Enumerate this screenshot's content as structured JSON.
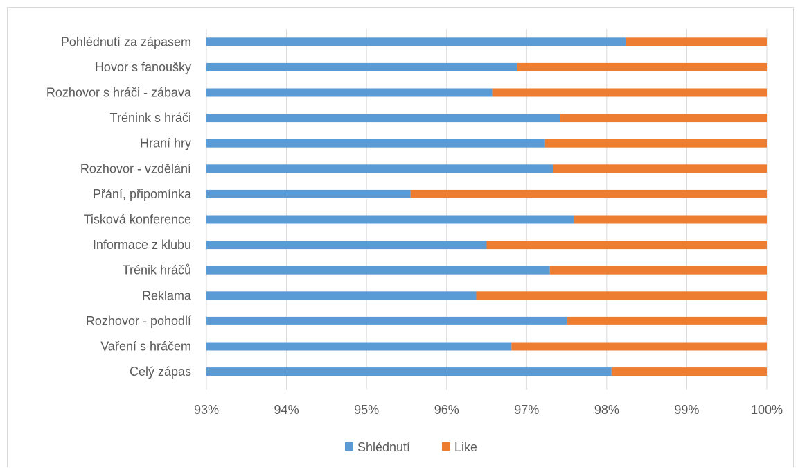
{
  "chart_data": {
    "type": "bar",
    "orientation": "horizontal",
    "stacked": "percent",
    "title": "",
    "xlabel": "",
    "ylabel": "",
    "categories": [
      "Pohlédnutí za zápasem",
      "Hovor s fanoušky",
      "Rozhovor s hráči - zábava",
      "Trénink s hráči",
      "Hraní hry",
      "Rozhovor - vzdělání",
      "Přání, připomínka",
      "Tisková konference",
      "Informace z klubu",
      "Trénik hráčů",
      "Reklama",
      "Rozhovor - pohodlí",
      "Vaření s hráčem",
      "Celý zápas"
    ],
    "series": [
      {
        "name": "Shlédnutí",
        "color": "#5B9BD5",
        "values": [
          98.24,
          96.88,
          96.57,
          97.42,
          97.23,
          97.33,
          95.55,
          97.59,
          96.5,
          97.29,
          96.37,
          97.5,
          96.81,
          98.06
        ]
      },
      {
        "name": "Like",
        "color": "#ED7D31",
        "values": [
          1.76,
          3.12,
          3.43,
          2.58,
          2.77,
          2.67,
          4.45,
          2.41,
          3.5,
          2.71,
          3.63,
          2.5,
          3.19,
          1.94
        ]
      }
    ],
    "xlim": [
      93,
      100
    ],
    "x_ticks": [
      "93%",
      "94%",
      "95%",
      "96%",
      "97%",
      "98%",
      "99%",
      "100%"
    ],
    "grid": true,
    "legend": "bottom"
  }
}
